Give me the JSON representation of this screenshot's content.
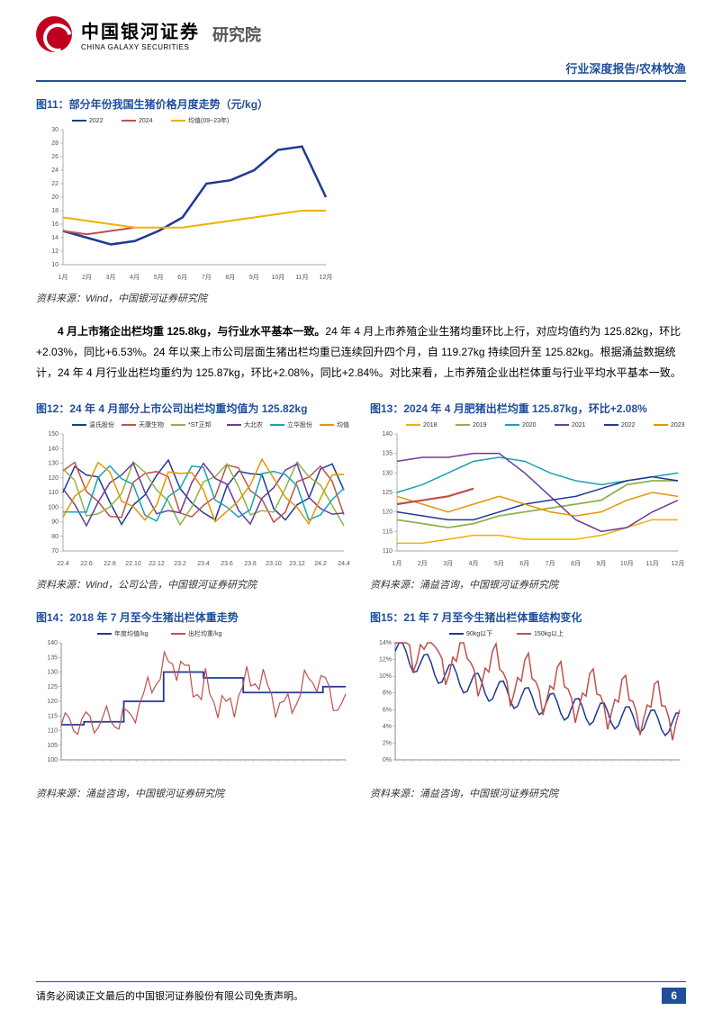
{
  "header": {
    "brand_cn": "中国银河证券",
    "brand_en": "CHINA GALAXY SECURITIES",
    "dept": "研究院",
    "subheader": "行业深度报告/农林牧渔"
  },
  "fig11": {
    "title": "图11：部分年份我国生猪价格月度走势（元/kg）",
    "type": "line",
    "x": [
      "1月",
      "2月",
      "3月",
      "4月",
      "5月",
      "6月",
      "7月",
      "8月",
      "9月",
      "10月",
      "11月",
      "12月"
    ],
    "ylim": [
      10,
      30
    ],
    "ytick_step": 2,
    "series": [
      {
        "name": "2022",
        "color": "#1f3a93",
        "width": 2.5,
        "values": [
          15,
          14,
          13,
          13.5,
          15,
          17,
          22,
          22.5,
          24,
          27,
          27.5,
          20
        ]
      },
      {
        "name": "2024",
        "color": "#c0504d",
        "width": 2,
        "values": [
          15,
          14.5,
          15,
          15.5,
          null,
          null,
          null,
          null,
          null,
          null,
          null,
          null
        ]
      },
      {
        "name": "均值(09~23年)",
        "color": "#f0b000",
        "width": 2,
        "values": [
          17,
          16.5,
          16,
          15.5,
          15.5,
          15.5,
          16,
          16.5,
          17,
          17.5,
          18,
          18
        ]
      }
    ],
    "legend_pos": "top",
    "background_color": "#ffffff",
    "source": "资料来源：Wind，中国银河证券研究院"
  },
  "body": {
    "para": "4 月上市猪企出栏均重 125.8kg，与行业水平基本一致。24 年 4 月上市养殖企业生猪均重环比上行，对应均值约为 125.82kg，环比+2.03%，同比+6.53%。24 年以来上市公司层面生猪出栏均重已连续回升四个月，自 119.27kg 持续回升至 125.82kg。根据涌益数据统计，24 年 4 月行业出栏均重约为 125.87kg，环比+2.08%，同比+2.84%。对比来看，上市养殖企业出栏体重与行业平均水平基本一致。",
    "lead_bold": "4 月上市猪企出栏均重 125.8kg，与行业水平基本一致。"
  },
  "fig12": {
    "title": "图12：24 年 4 月部分上市公司出栏均重均值为 125.82kg",
    "type": "line",
    "x": [
      "22.4",
      "22.5",
      "22.6",
      "22.7",
      "22.8",
      "22.9",
      "22.10",
      "22.11",
      "22.12",
      "23.1",
      "23.2",
      "23.3",
      "23.4",
      "23.5",
      "23.6",
      "23.7",
      "23.8",
      "23.9",
      "23.10",
      "23.11",
      "23.12",
      "24.1",
      "24.2",
      "24.3",
      "24.4"
    ],
    "ylim": [
      70,
      150
    ],
    "ytick_step": 10,
    "series": [
      {
        "name": "温氏股份",
        "color": "#1f3a93",
        "width": 1.5
      },
      {
        "name": "天康生物",
        "color": "#c0504d",
        "width": 1.5
      },
      {
        "name": "*ST正邦",
        "color": "#8db34a",
        "width": 1.5
      },
      {
        "name": "大北农",
        "color": "#6a3d9a",
        "width": 1.5
      },
      {
        "name": "立华股份",
        "color": "#17a2b8",
        "width": 1.5
      },
      {
        "name": "均值",
        "color": "#e69500",
        "width": 1.5
      }
    ],
    "source": "资料来源：Wind，公司公告，中国银河证券研究院"
  },
  "fig13": {
    "title": "图13：2024 年 4 月肥猪出栏均重 125.87kg，环比+2.08%",
    "type": "line",
    "x": [
      "1月",
      "2月",
      "3月",
      "4月",
      "5月",
      "6月",
      "7月",
      "8月",
      "9月",
      "10月",
      "11月",
      "12月"
    ],
    "ylim": [
      110,
      140
    ],
    "ytick_step": 5,
    "series": [
      {
        "name": "2018",
        "color": "#f0b000",
        "width": 1.5,
        "values": [
          112,
          112,
          113,
          114,
          114,
          113,
          113,
          113,
          114,
          116,
          118,
          118
        ]
      },
      {
        "name": "2019",
        "color": "#8db34a",
        "width": 1.8,
        "values": [
          118,
          117,
          116,
          117,
          119,
          120,
          121,
          122,
          123,
          127,
          128,
          128
        ]
      },
      {
        "name": "2020",
        "color": "#17a2b8",
        "width": 1.5,
        "values": [
          125,
          127,
          130,
          133,
          134,
          133,
          130,
          128,
          127,
          128,
          129,
          130
        ]
      },
      {
        "name": "2021",
        "color": "#6a3d9a",
        "width": 1.5,
        "values": [
          133,
          134,
          134,
          135,
          135,
          130,
          124,
          118,
          115,
          116,
          120,
          123
        ]
      },
      {
        "name": "2022",
        "color": "#1f3a93",
        "width": 1.5,
        "values": [
          120,
          119,
          118,
          118,
          120,
          122,
          123,
          124,
          126,
          128,
          129,
          128
        ]
      },
      {
        "name": "2023",
        "color": "#e69500",
        "width": 1.5,
        "values": [
          124,
          122,
          120,
          122,
          124,
          122,
          120,
          119,
          120,
          123,
          125,
          124
        ]
      },
      {
        "name": "2024",
        "color": "#c0504d",
        "width": 2.2,
        "values": [
          122,
          123,
          124,
          126,
          null,
          null,
          null,
          null,
          null,
          null,
          null,
          null
        ]
      }
    ],
    "source": "资料来源：涌益咨询，中国银河证券研究院"
  },
  "fig14": {
    "title": "图14：2018 年 7 月至今生猪出栏体重走势",
    "type": "line",
    "ylim": [
      100,
      140
    ],
    "ytick_step": 5,
    "series": [
      {
        "name": "年度均值/kg",
        "color": "#1f3a93",
        "width": 1.8,
        "step": true
      },
      {
        "name": "出栏均重/kg",
        "color": "#c0504d",
        "width": 1.2
      }
    ],
    "source": "资料来源：涌益咨询，中国银河证券研究院"
  },
  "fig15": {
    "title": "图15：21 年 7 月至今生猪出栏体重结构变化",
    "type": "line",
    "ylim_pct": [
      0,
      14
    ],
    "ytick_step": 2,
    "series": [
      {
        "name": "90kg以下",
        "color": "#1f3a93",
        "width": 1.5
      },
      {
        "name": "150kg以上",
        "color": "#c0504d",
        "width": 1.5
      }
    ],
    "source": "资料来源：涌益咨询，中国银河证券研究院"
  },
  "footer": {
    "disclaimer": "请务必阅读正文最后的中国银河证券股份有限公司免责声明。",
    "page": "6"
  },
  "colors": {
    "brand_blue": "#1f4e9c",
    "brand_red": "#c00020"
  }
}
